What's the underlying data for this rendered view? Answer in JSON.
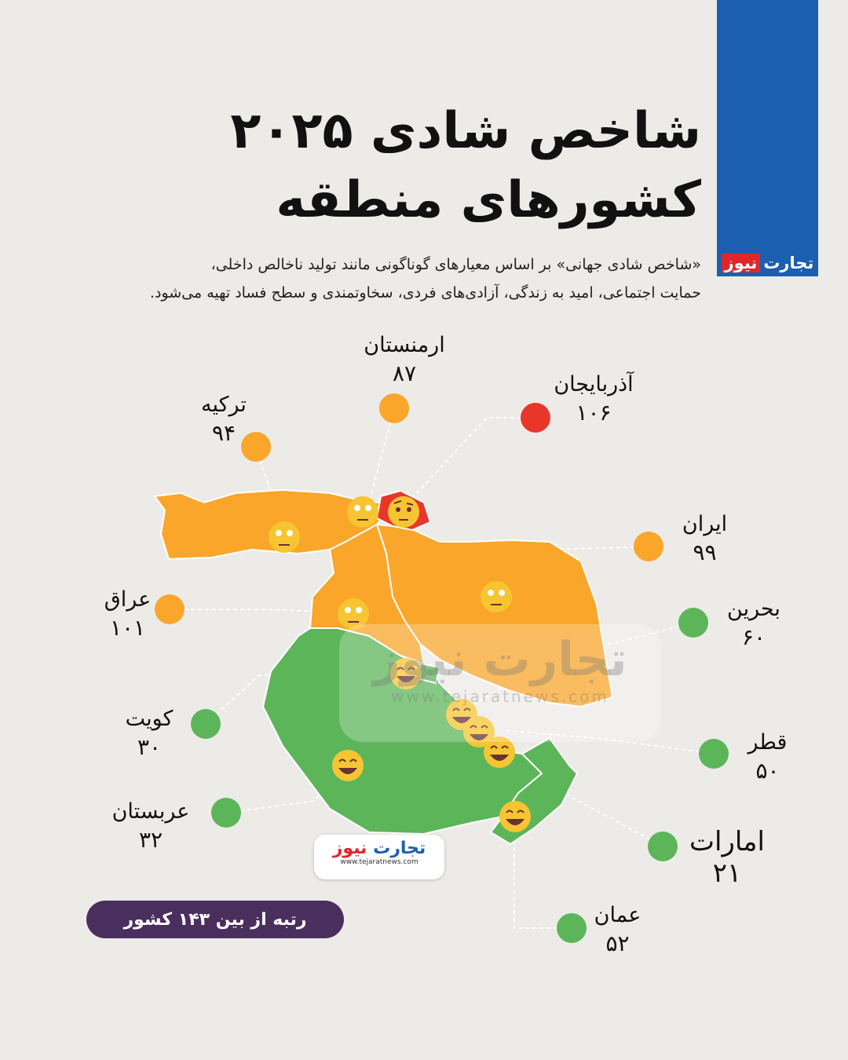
{
  "brand": {
    "part1": "تجارت",
    "part2": "نیوز",
    "url": "www.tejaratnews.com",
    "blue": "#1c5fb0",
    "red": "#e0262b"
  },
  "title": {
    "line1": "شاخص شادی ۲۰۲۵",
    "line2": "کشورهای منطقه"
  },
  "subtitle": {
    "line1": "«شاخص شادی جهانی» بر اساس معیارهای گوناگونی مانند تولید ناخالص داخلی،",
    "line2": "حمایت اجتماعی، امید به زندگی، آزادی‌های فردی، سخاوتمندی و سطح فساد تهیه می‌شود."
  },
  "legend_colors": {
    "orange": "#f9a62b",
    "red": "#e8372a",
    "green": "#5db55a"
  },
  "countries": [
    {
      "name": "ارمنستان",
      "rank": "۸۷",
      "color": "#f9a62b",
      "face": "eye-roll"
    },
    {
      "name": "آذربایجان",
      "rank": "۱۰۶",
      "color": "#e8372a",
      "face": "raised-eyebrow"
    },
    {
      "name": "ترکیه",
      "rank": "۹۴",
      "color": "#f9a62b",
      "face": "eye-roll"
    },
    {
      "name": "ایران",
      "rank": "۹۹",
      "color": "#f9a62b",
      "face": "eye-roll"
    },
    {
      "name": "عراق",
      "rank": "۱۰۱",
      "color": "#f9a62b",
      "face": "eye-roll"
    },
    {
      "name": "بحرین",
      "rank": "۶۰",
      "color": "#5db55a",
      "face": "grin"
    },
    {
      "name": "کویت",
      "rank": "۳۰",
      "color": "#5db55a",
      "face": "grin"
    },
    {
      "name": "قطر",
      "rank": "۵۰",
      "color": "#5db55a",
      "face": "grin"
    },
    {
      "name": "عربستان",
      "rank": "۳۲",
      "color": "#5db55a",
      "face": "grin"
    },
    {
      "name": "امارات",
      "rank": "۲۱",
      "color": "#5db55a",
      "face": "grin"
    },
    {
      "name": "عمان",
      "rank": "۵۲",
      "color": "#5db55a",
      "face": "grin"
    }
  ],
  "footer_badge": "رتبه از بین ۱۴۳ کشور"
}
